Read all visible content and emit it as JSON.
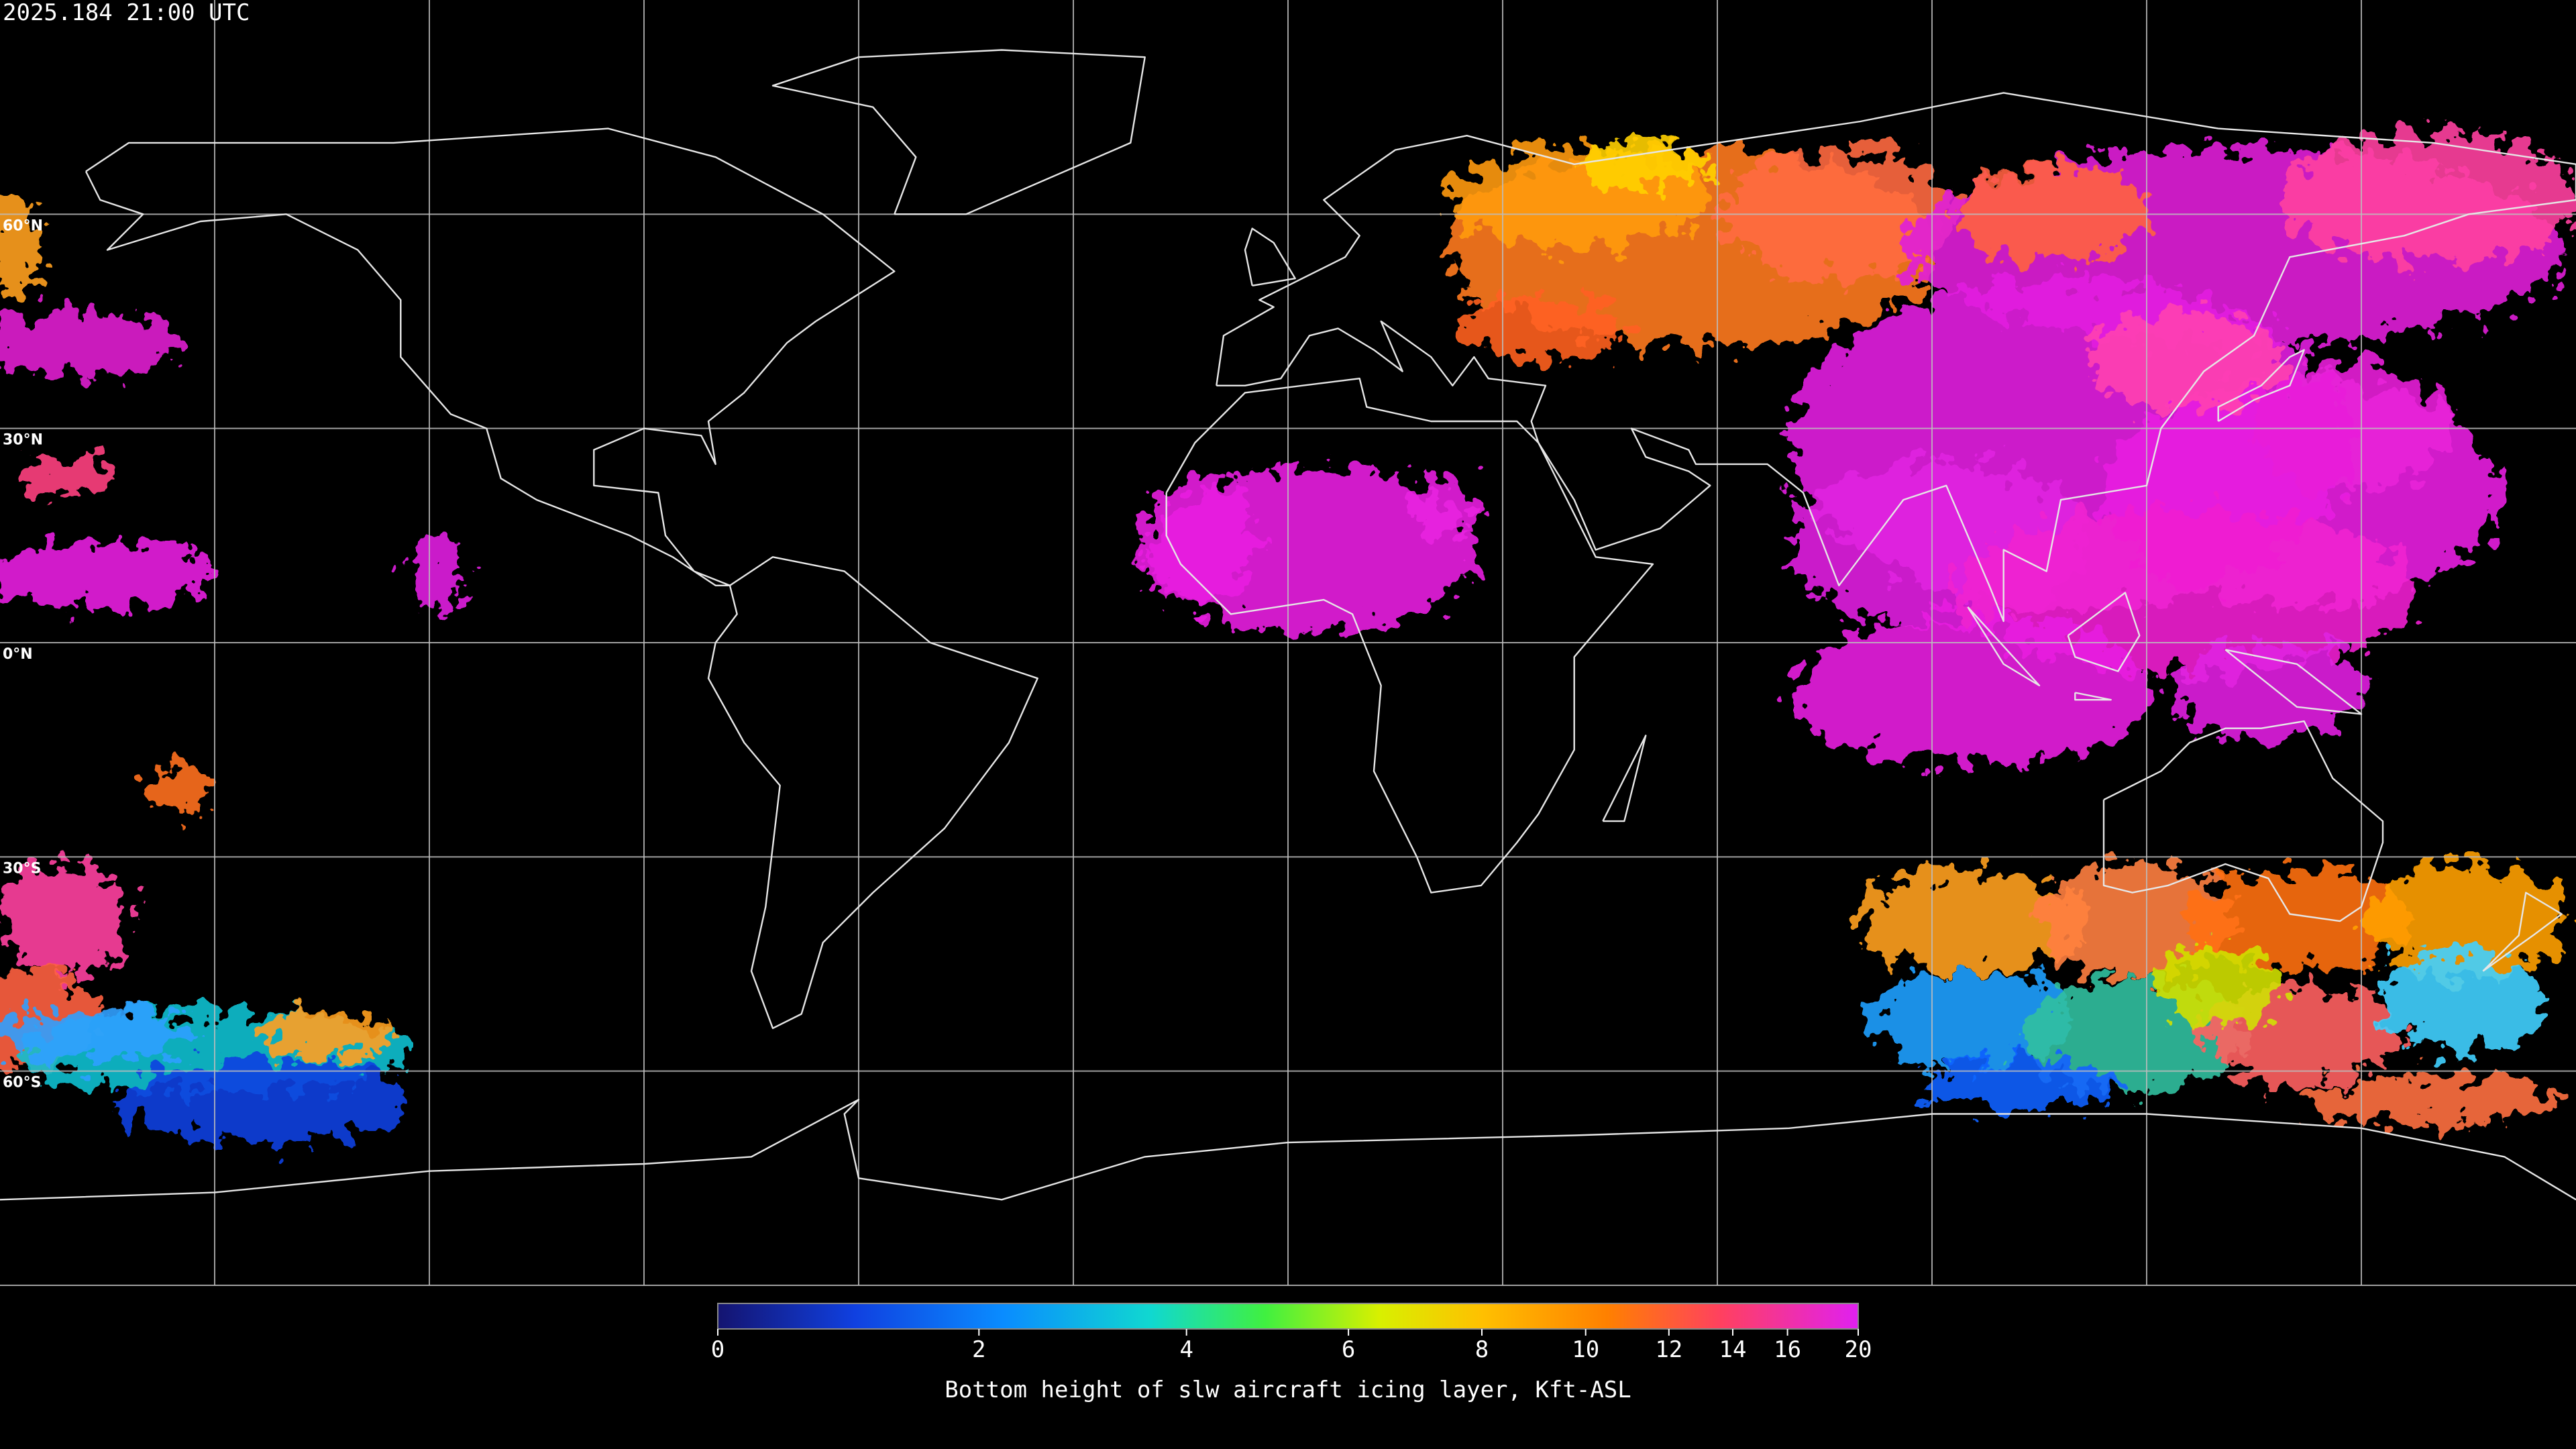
{
  "header": {
    "timestamp": "2025.184 21:00 UTC"
  },
  "map": {
    "lat_labels": [
      "60°N",
      "30°N",
      "0°N",
      "30°S",
      "60°S"
    ]
  },
  "colorbar": {
    "title": "Bottom height of slw aircraft icing layer, Kft-ASL",
    "range": [
      0,
      20
    ],
    "ticks": [
      0,
      2,
      4,
      6,
      8,
      10,
      12,
      14,
      16,
      20
    ]
  }
}
